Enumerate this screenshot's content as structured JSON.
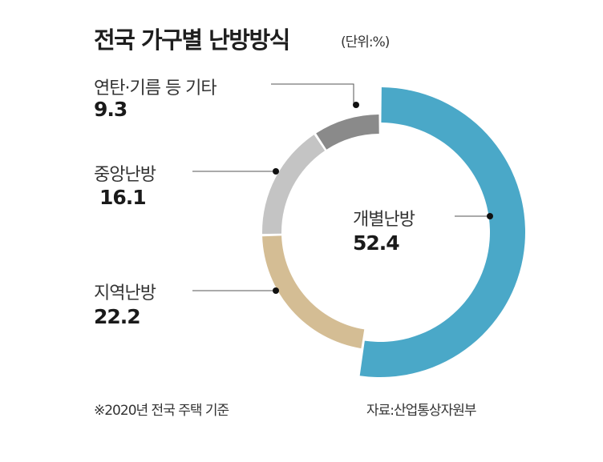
{
  "header": {
    "title": "전국 가구별 난방방식",
    "unit": "(단위:%)"
  },
  "labels": {
    "other": {
      "name": "연탄·기름 등 기타",
      "value": "9.3"
    },
    "central": {
      "name": "중앙난방",
      "value": "16.1"
    },
    "district": {
      "name": "지역난방",
      "value": "22.2"
    },
    "individual": {
      "name": "개별난방",
      "value": "52.4"
    }
  },
  "footer": {
    "note": "※2020년 전국 주택 기준",
    "source": "자료:산업통상자원부"
  },
  "colors": {
    "individual": "#4aa8c8",
    "district": "#d4bd94",
    "central": "#c4c4c4",
    "other": "#8a8a8a",
    "leader": "#555555",
    "dot": "#111111"
  },
  "chart_data": {
    "type": "pie",
    "subtype": "donut",
    "title": "전국 가구별 난방방식",
    "unit": "%",
    "categories": [
      "개별난방",
      "지역난방",
      "중앙난방",
      "연탄·기름 등 기타"
    ],
    "values": [
      52.4,
      22.2,
      16.1,
      9.3
    ],
    "colors": [
      "#4aa8c8",
      "#d4bd94",
      "#c4c4c4",
      "#8a8a8a"
    ],
    "start_angle": "12 o'clock, clockwise",
    "note": "※2020년 전국 주택 기준",
    "source": "자료:산업통상자원부",
    "legend": "none (direct labels with leader lines)"
  }
}
